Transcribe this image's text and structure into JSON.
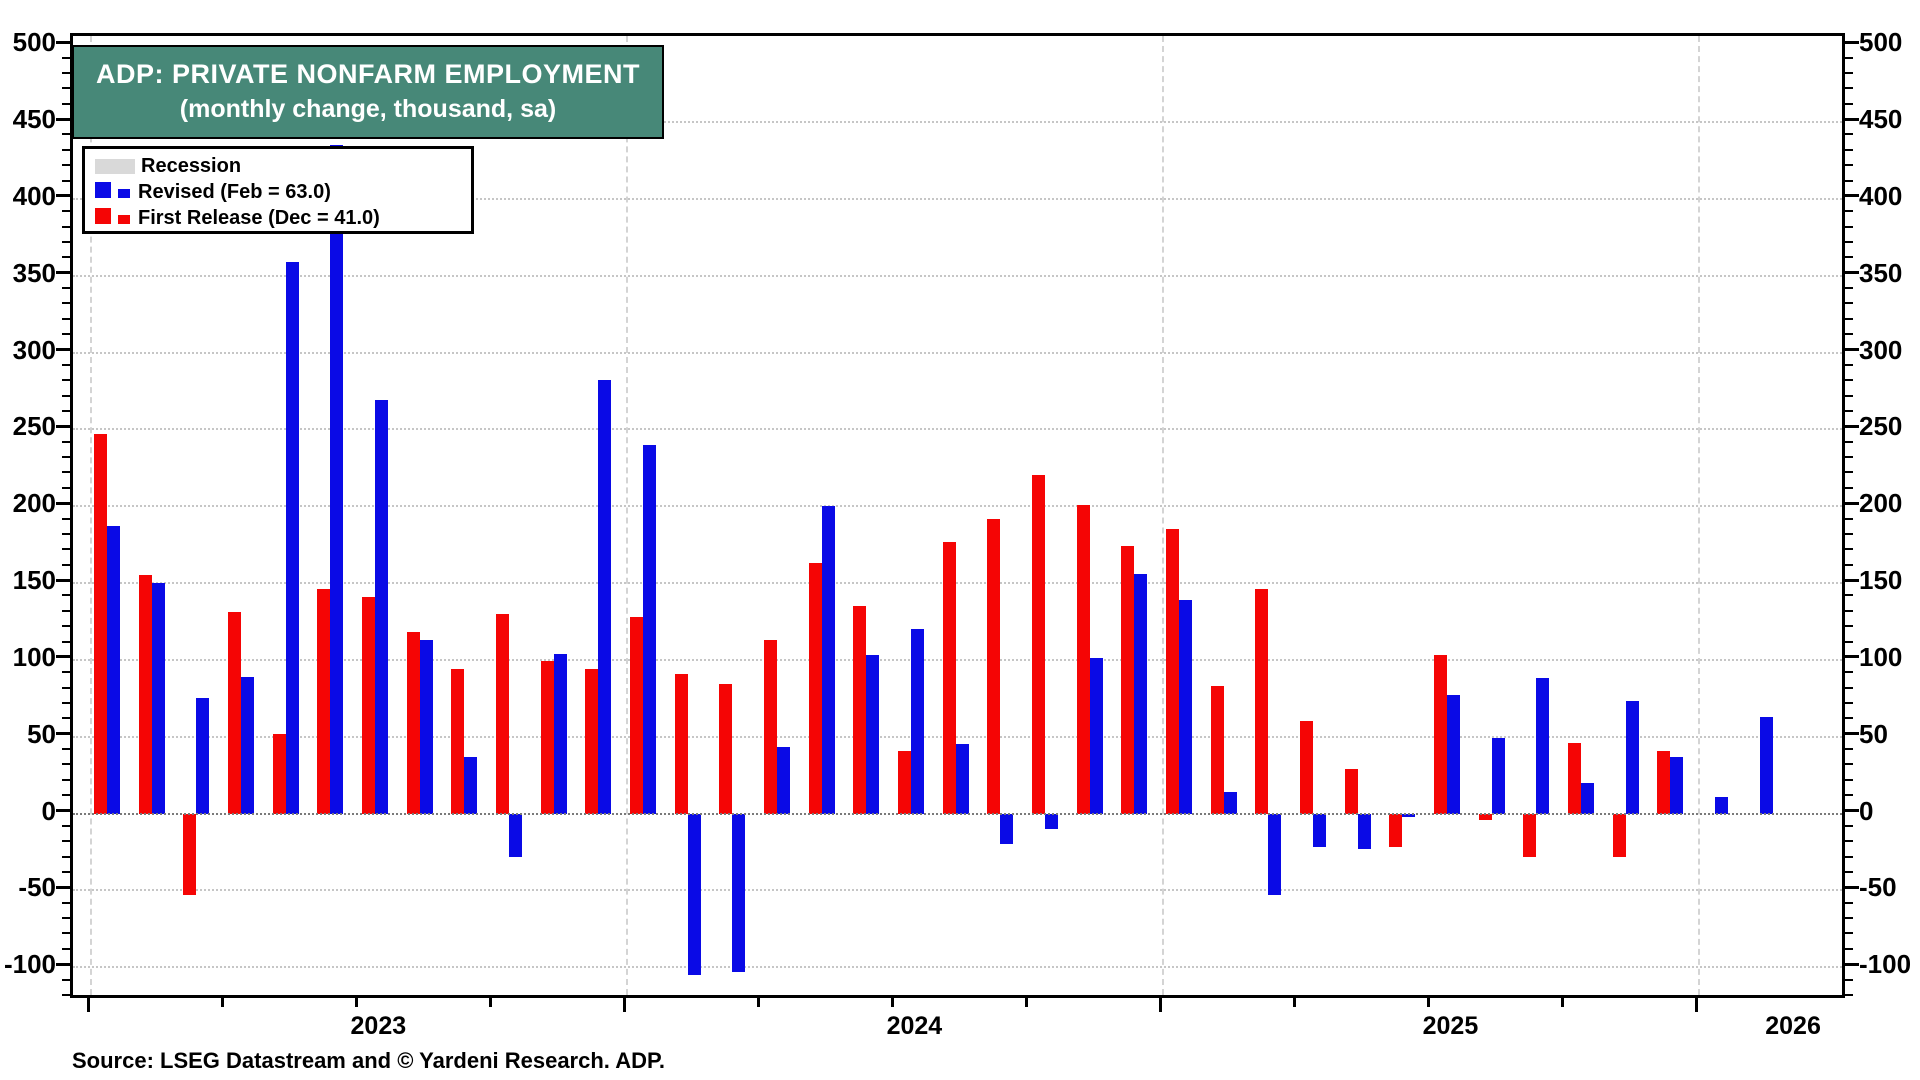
{
  "chart_data": {
    "type": "bar",
    "title": "ADP: PRIVATE NONFARM EMPLOYMENT",
    "subtitle": "(monthly change, thousand, sa)",
    "source": "Source: LSEG Datastream and © Yardeni Research. ADP.",
    "ylabel": "",
    "xlabel": "",
    "ylim": [
      -122,
      506
    ],
    "ytick_step": 50,
    "ytick_labels": [
      500,
      450,
      400,
      350,
      300,
      250,
      200,
      150,
      100,
      50,
      0,
      -50,
      -100
    ],
    "grid": "horizontal dotted at 50s, vertical dashed at year starts, dotted zero line",
    "legend_position": "top-left",
    "legend": [
      {
        "label": "Recession",
        "color": "#d9d9d9",
        "type": "band"
      },
      {
        "label": "Revised (Feb = 63.0)",
        "color": "#0a0ae6",
        "type": "bar"
      },
      {
        "label": "First Release (Dec = 41.0)",
        "color": "#f50505",
        "type": "bar"
      }
    ],
    "categories": [
      "Jan 2023",
      "Feb 2023",
      "Mar 2023",
      "Apr 2023",
      "May 2023",
      "Jun 2023",
      "Jul 2023",
      "Aug 2023",
      "Sep 2023",
      "Oct 2023",
      "Nov 2023",
      "Dec 2023",
      "Jan 2024",
      "Feb 2024",
      "Mar 2024",
      "Apr 2024",
      "May 2024",
      "Jun 2024",
      "Jul 2024",
      "Aug 2024",
      "Sep 2024",
      "Oct 2024",
      "Nov 2024",
      "Dec 2024",
      "Jan 2025",
      "Feb 2025",
      "Mar 2025",
      "Apr 2025",
      "May 2025",
      "Jun 2025",
      "Jul 2025",
      "Aug 2025",
      "Sep 2025",
      "Oct 2025",
      "Nov 2025",
      "Dec 2025",
      "Jan 2026",
      "Feb 2026"
    ],
    "series": [
      {
        "name": "First Release",
        "color": "#f50505",
        "values": [
          247,
          155,
          -53,
          131,
          52,
          146,
          141,
          118,
          94,
          130,
          99,
          94,
          128,
          91,
          84,
          113,
          163,
          135,
          41,
          177,
          192,
          220,
          201,
          174,
          185,
          83,
          146,
          60,
          29,
          -22,
          103,
          -4,
          -28,
          46,
          -28,
          41,
          null,
          null
        ]
      },
      {
        "name": "Revised",
        "color": "#0a0ae6",
        "values": [
          187,
          150,
          75,
          89,
          359,
          435,
          269,
          113,
          37,
          -28,
          104,
          282,
          240,
          -105,
          -103,
          43,
          200,
          103,
          120,
          45,
          -20,
          -10,
          101,
          156,
          139,
          14,
          -53,
          -22,
          -23,
          -2,
          77,
          49,
          88,
          20,
          73,
          37,
          11,
          63
        ]
      }
    ],
    "x_year_labels": [
      {
        "label": "2023",
        "center_month_index": 6
      },
      {
        "label": "2024",
        "center_month_index": 18
      },
      {
        "label": "2025",
        "center_month_index": 30
      },
      {
        "label": "2026",
        "center_month_index": 37.67
      }
    ],
    "year_gridline_month_indexes": [
      0,
      12,
      24,
      36
    ]
  },
  "header": {
    "title": "ADP: PRIVATE NONFARM EMPLOYMENT",
    "subtitle": "(monthly change, thousand, sa)"
  },
  "legend": {
    "recession_label": "Recession",
    "revised_label": "Revised (Feb = 63.0)",
    "first_release_label": "First Release (Dec = 41.0)"
  },
  "footer": {
    "source_text": "Source: LSEG Datastream and © Yardeni Research. ADP."
  },
  "colors": {
    "revised_blue": "#0a0ae6",
    "first_release_red": "#f50505",
    "recession_gray": "#d9d9d9",
    "title_bg_teal": "#478878",
    "grid_gray": "#c6c6c6",
    "zero_line_gray": "#7a7a7a"
  }
}
